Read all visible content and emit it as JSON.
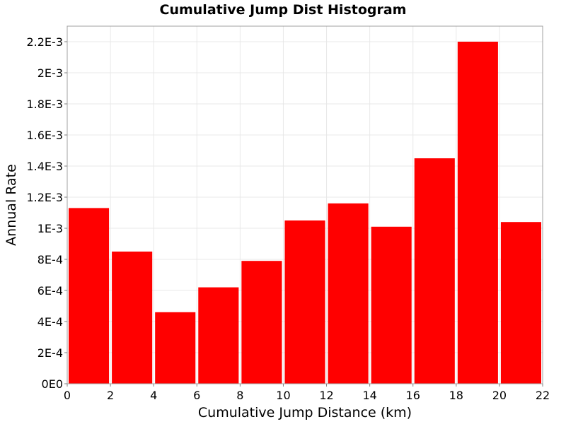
{
  "chart_data": {
    "type": "bar",
    "title": "Cumulative Jump Dist Histogram",
    "xlabel": "Cumulative Jump Distance (km)",
    "ylabel": "Annual Rate",
    "xlim": [
      0,
      22
    ],
    "ylim": [
      0,
      0.0023
    ],
    "x_ticks": [
      {
        "value": 0,
        "label": "0"
      },
      {
        "value": 2,
        "label": "2"
      },
      {
        "value": 4,
        "label": "4"
      },
      {
        "value": 6,
        "label": "6"
      },
      {
        "value": 8,
        "label": "8"
      },
      {
        "value": 10,
        "label": "10"
      },
      {
        "value": 12,
        "label": "12"
      },
      {
        "value": 14,
        "label": "14"
      },
      {
        "value": 16,
        "label": "16"
      },
      {
        "value": 18,
        "label": "18"
      },
      {
        "value": 20,
        "label": "20"
      },
      {
        "value": 22,
        "label": "22"
      }
    ],
    "y_ticks": [
      {
        "value": 0,
        "label": "0E0"
      },
      {
        "value": 0.0002,
        "label": "2E-4"
      },
      {
        "value": 0.0004,
        "label": "4E-4"
      },
      {
        "value": 0.0006,
        "label": "6E-4"
      },
      {
        "value": 0.0008,
        "label": "8E-4"
      },
      {
        "value": 0.001,
        "label": "1E-3"
      },
      {
        "value": 0.0012,
        "label": "1.2E-3"
      },
      {
        "value": 0.0014,
        "label": "1.4E-3"
      },
      {
        "value": 0.0016,
        "label": "1.6E-3"
      },
      {
        "value": 0.0018,
        "label": "1.8E-3"
      },
      {
        "value": 0.002,
        "label": "2E-3"
      },
      {
        "value": 0.0022,
        "label": "2.2E-3"
      }
    ],
    "bins": [
      {
        "x0": 0,
        "x1": 2,
        "value": 0.00113
      },
      {
        "x0": 2,
        "x1": 4,
        "value": 0.00085
      },
      {
        "x0": 4,
        "x1": 6,
        "value": 0.00046
      },
      {
        "x0": 6,
        "x1": 8,
        "value": 0.00062
      },
      {
        "x0": 8,
        "x1": 10,
        "value": 0.00079
      },
      {
        "x0": 10,
        "x1": 12,
        "value": 0.00105
      },
      {
        "x0": 12,
        "x1": 14,
        "value": 0.00116
      },
      {
        "x0": 14,
        "x1": 16,
        "value": 0.00101
      },
      {
        "x0": 16,
        "x1": 18,
        "value": 0.00145
      },
      {
        "x0": 18,
        "x1": 20,
        "value": 0.0022
      },
      {
        "x0": 20,
        "x1": 22,
        "value": 0.00104
      }
    ],
    "bar_color": "#ff0000",
    "grid": true,
    "grid_color": "#e8e8e8",
    "legend": "none"
  }
}
